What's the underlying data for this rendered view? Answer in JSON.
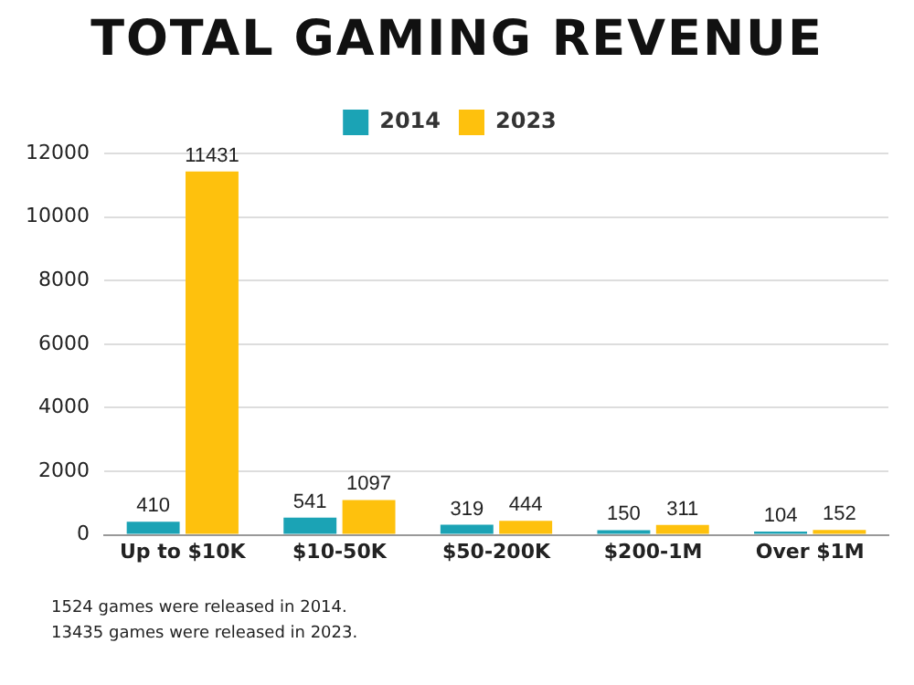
{
  "chart_data": {
    "type": "bar",
    "title": "TOTAL GAMING REVENUE",
    "categories": [
      "Up to $10K",
      "$10-50K",
      "$50-200K",
      "$200-1M",
      "Over $1M"
    ],
    "series": [
      {
        "name": "2014",
        "color": "#1ba3b5",
        "values": [
          410,
          541,
          319,
          150,
          104
        ]
      },
      {
        "name": "2023",
        "color": "#fec10d",
        "values": [
          11431,
          1097,
          444,
          311,
          152
        ]
      }
    ],
    "ylim": [
      0,
      12000
    ],
    "yticks": [
      0,
      2000,
      4000,
      6000,
      8000,
      10000,
      12000
    ],
    "grid": "y",
    "legend": "top",
    "data_labels": true,
    "annotations": [
      "1524 games were released in 2014.",
      "13435 games were released in 2023."
    ]
  }
}
